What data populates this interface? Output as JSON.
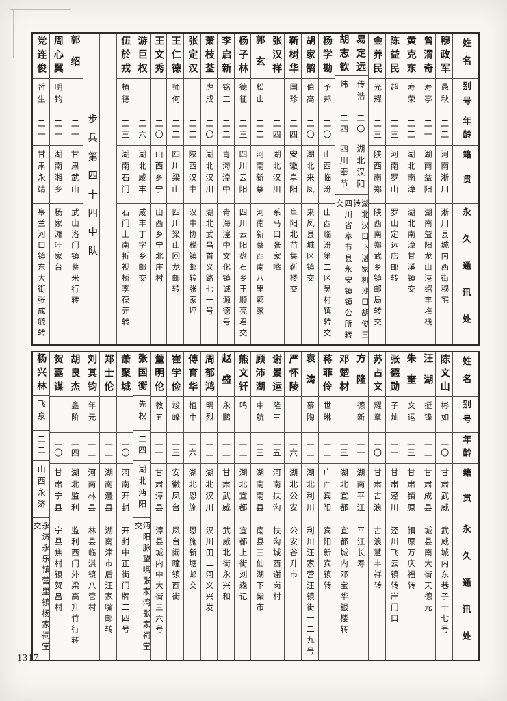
{
  "page": {
    "number": "1317"
  },
  "table_headers": {
    "name": "姓名",
    "alias": "别号",
    "age": "年龄",
    "origin": "籍贯",
    "address": "永久通讯处"
  },
  "unit_label": "步兵第四十四中队",
  "top_table": {
    "columns": [
      {
        "name": "穆政军",
        "alias": "愚秋",
        "age": "二二",
        "origin": "河南淅川",
        "address": "淅川县城内西街穆宅"
      },
      {
        "name": "曾渭奇",
        "alias": "寿亭",
        "age": "二一",
        "origin": "湖南益阳",
        "address": "湖南益阳龙山港绍丰堆栈"
      },
      {
        "name": "黄克东",
        "alias": "寿荣",
        "age": "二二",
        "origin": "湖北南漳",
        "address": "湖北南漳甘溪镇交"
      },
      {
        "name": "陈益民",
        "alias": "超",
        "age": "二三",
        "origin": "河南罗山",
        "address": "罗山定远店邮转"
      },
      {
        "name": "金养民",
        "alias": "光耀",
        "age": "二三",
        "origin": "陕西南郑",
        "address": "陕西南郑武乡镇邮局转交"
      },
      {
        "name": "易定远",
        "alias": "传浩",
        "age": "二〇",
        "origin": "湖北汉阳",
        "address": "湖北汉口下湛家机沙口胡俊三转"
      },
      {
        "name": "胡志钦",
        "alias": "炜",
        "age": "二四",
        "origin": "四川奉节",
        "address": "四川省奉节县永安镇镇公所转交"
      },
      {
        "name": "杨学勘",
        "alias": "予邦",
        "age": "二〇",
        "origin": "山西临汾",
        "address": "山西临汾第二区吴村镇转交"
      },
      {
        "name": "胡家鹄",
        "alias": "伯高",
        "age": "二〇",
        "origin": "湖北来凤",
        "address": "来凤县城区镇交"
      },
      {
        "name": "靳树华",
        "alias": "国珍",
        "age": "二四",
        "origin": "安徽阜阳",
        "address": "阜阳北苗集靳楼交"
      },
      {
        "name": "张汉祥",
        "alias": "",
        "age": "二四",
        "origin": "湖北汉川",
        "address": "系马口张家嘴"
      },
      {
        "name": "郭玄",
        "alias": "松山",
        "age": "二二",
        "origin": "河南新蔡",
        "address": "河南新蔡西南八里郭冢"
      },
      {
        "name": "杨子林",
        "alias": "德征",
        "age": "二三",
        "origin": "四川云阳",
        "address": "四川云阳盘石乡王顺亮君交"
      },
      {
        "name": "李启新",
        "alias": "铭三",
        "age": "二二",
        "origin": "青海湟中",
        "address": "青海湟中文化镇诚源德号"
      },
      {
        "name": "萧枝荃",
        "alias": "虎成",
        "age": "二〇",
        "origin": "湖北汉川",
        "address": "湖北武昌首义路七一号"
      },
      {
        "name": "张定汉",
        "alias": "",
        "age": "二二",
        "origin": "陕西汉中",
        "address": "汉中协税镇邮转张家坪"
      },
      {
        "name": "王仁德",
        "alias": "师何",
        "age": "二二",
        "origin": "四川梁山",
        "address": "四川梁山回龙邮转"
      },
      {
        "name": "王文秀",
        "alias": "",
        "age": "二〇",
        "origin": "山西乡宁",
        "address": "山西乡宁北庄村"
      },
      {
        "name": "游巨权",
        "alias": "",
        "age": "二六",
        "origin": "湖北咸丰",
        "address": "咸丰丁字乡邮交"
      },
      {
        "name": "伍於戎",
        "alias": "植德",
        "age": "二三",
        "origin": "湖南石门",
        "address": "石门上南折视桥李葆元转"
      },
      {
        "type": "empty"
      },
      {
        "type": "unit_label"
      },
      {
        "name": "郭绍",
        "alias": "",
        "age": "二一",
        "origin": "甘肃武山",
        "address": "武山洛门镇蔡米行转"
      },
      {
        "name": "周心翼",
        "alias": "明钧",
        "age": "二一",
        "origin": "湖南湘乡",
        "address": "杨家滩叶家台"
      },
      {
        "name": "党连俊",
        "alias": "哲生",
        "age": "二一",
        "origin": "甘肃永靖",
        "address": "皋兰河口镇东大街张成毓转"
      }
    ]
  },
  "bottom_table": {
    "columns": [
      {
        "name": "陈文山",
        "alias": "彬如",
        "age": "二〇",
        "origin": "甘肃武威",
        "address": "武威城内东巷子十七号"
      },
      {
        "name": "汪湖",
        "alias": "挺锋",
        "age": "二二",
        "origin": "甘肃成县",
        "address": "城县南大街天德元"
      },
      {
        "name": "朱奎",
        "alias": "文运",
        "age": "二三",
        "origin": "甘肃镇原",
        "address": "镇原万庆福转"
      },
      {
        "name": "张德勋",
        "alias": "子灿",
        "age": "二一",
        "origin": "甘肃泾川",
        "address": "泾川飞云镇转岸门口"
      },
      {
        "name": "苏占文",
        "alias": "耀章",
        "age": "二〇",
        "origin": "甘肃古浪",
        "address": "古浪慧丰祥转"
      },
      {
        "name": "方隆",
        "alias": "德新",
        "age": "二一",
        "origin": "湖南平江",
        "address": "平江长寿"
      },
      {
        "name": "邓楚材",
        "alias": "",
        "age": "二三",
        "origin": "湖北宜都",
        "address": "宜都城内邓宝华银楼转"
      },
      {
        "name": "蒋菲伶",
        "alias": "世琳",
        "age": "二二",
        "origin": "广西宾阳",
        "address": "宾阳新宾镇转"
      },
      {
        "name": "袁涛",
        "alias": "慕陶",
        "age": "二二",
        "origin": "湖北利川",
        "address": "利川汪家营汪镇街一二九号"
      },
      {
        "name": "严怀陵",
        "alias": "",
        "age": "二六",
        "origin": "湖北公安",
        "address": "公安谷升市"
      },
      {
        "name": "谢景运",
        "alias": "隆三",
        "age": "二五",
        "origin": "河南扶沟",
        "address": "扶沟城西谢岗村"
      },
      {
        "name": "顾沛湖",
        "alias": "中航",
        "age": "二三",
        "origin": "湖南南县",
        "address": "南县三仙湖下柴市"
      },
      {
        "name": "熊文钎",
        "alias": "鸣",
        "age": "二二",
        "origin": "湖北宜都",
        "address": "宜都上街刘森记"
      },
      {
        "name": "赵盛",
        "alias": "永鹏",
        "age": "二二",
        "origin": "甘肃武威",
        "address": "武威北街永兴和"
      },
      {
        "name": "周郁鸿",
        "alias": "明烈",
        "age": "二二",
        "origin": "湖北汉川",
        "address": "汉川田二河义兴发"
      },
      {
        "name": "傅育华",
        "alias": "植中",
        "age": "二六",
        "origin": "湖北恩施",
        "address": "恩施新塘邮交"
      },
      {
        "name": "崔学俭",
        "alias": "竣峰",
        "age": "二三",
        "origin": "安徽凤台",
        "address": "凤台阚疃镇西街"
      },
      {
        "name": "蕫明伦",
        "alias": "教五",
        "age": "二一",
        "origin": "甘肃漳县",
        "address": "漳县城内中大街三六号"
      },
      {
        "name": "张国衡",
        "alias": "先权",
        "age": "二四",
        "origin": "湖北沔阳",
        "address": "沔阳脉望嘴张家湾张家祠堂交"
      },
      {
        "name": "萧聚城",
        "alias": "",
        "age": "二〇",
        "origin": "河南开封",
        "address": "开封中正街门牌二四号"
      },
      {
        "name": "郑士伦",
        "alias": "",
        "age": "二二",
        "origin": "湖南澧县",
        "address": "湖南津市后汪家嘴邮转"
      },
      {
        "name": "刘其钧",
        "alias": "年元",
        "age": "二二",
        "origin": "河南林县",
        "address": "林县临淇镇八管村"
      },
      {
        "name": "胡良杰",
        "alias": "鑫阶",
        "age": "二四",
        "origin": "湖北监利",
        "address": "监利西门外梁高升竹行转"
      },
      {
        "name": "贺嘉谋",
        "alias": "",
        "age": "二〇",
        "origin": "甘肃宁县",
        "address": "宁县焦村镇贺吕村"
      },
      {
        "name": "杨兴林",
        "alias": "飞泉",
        "age": "二二",
        "origin": "山西永济",
        "address": "永济永乐镇营里镇杨家祠堂交"
      }
    ]
  }
}
